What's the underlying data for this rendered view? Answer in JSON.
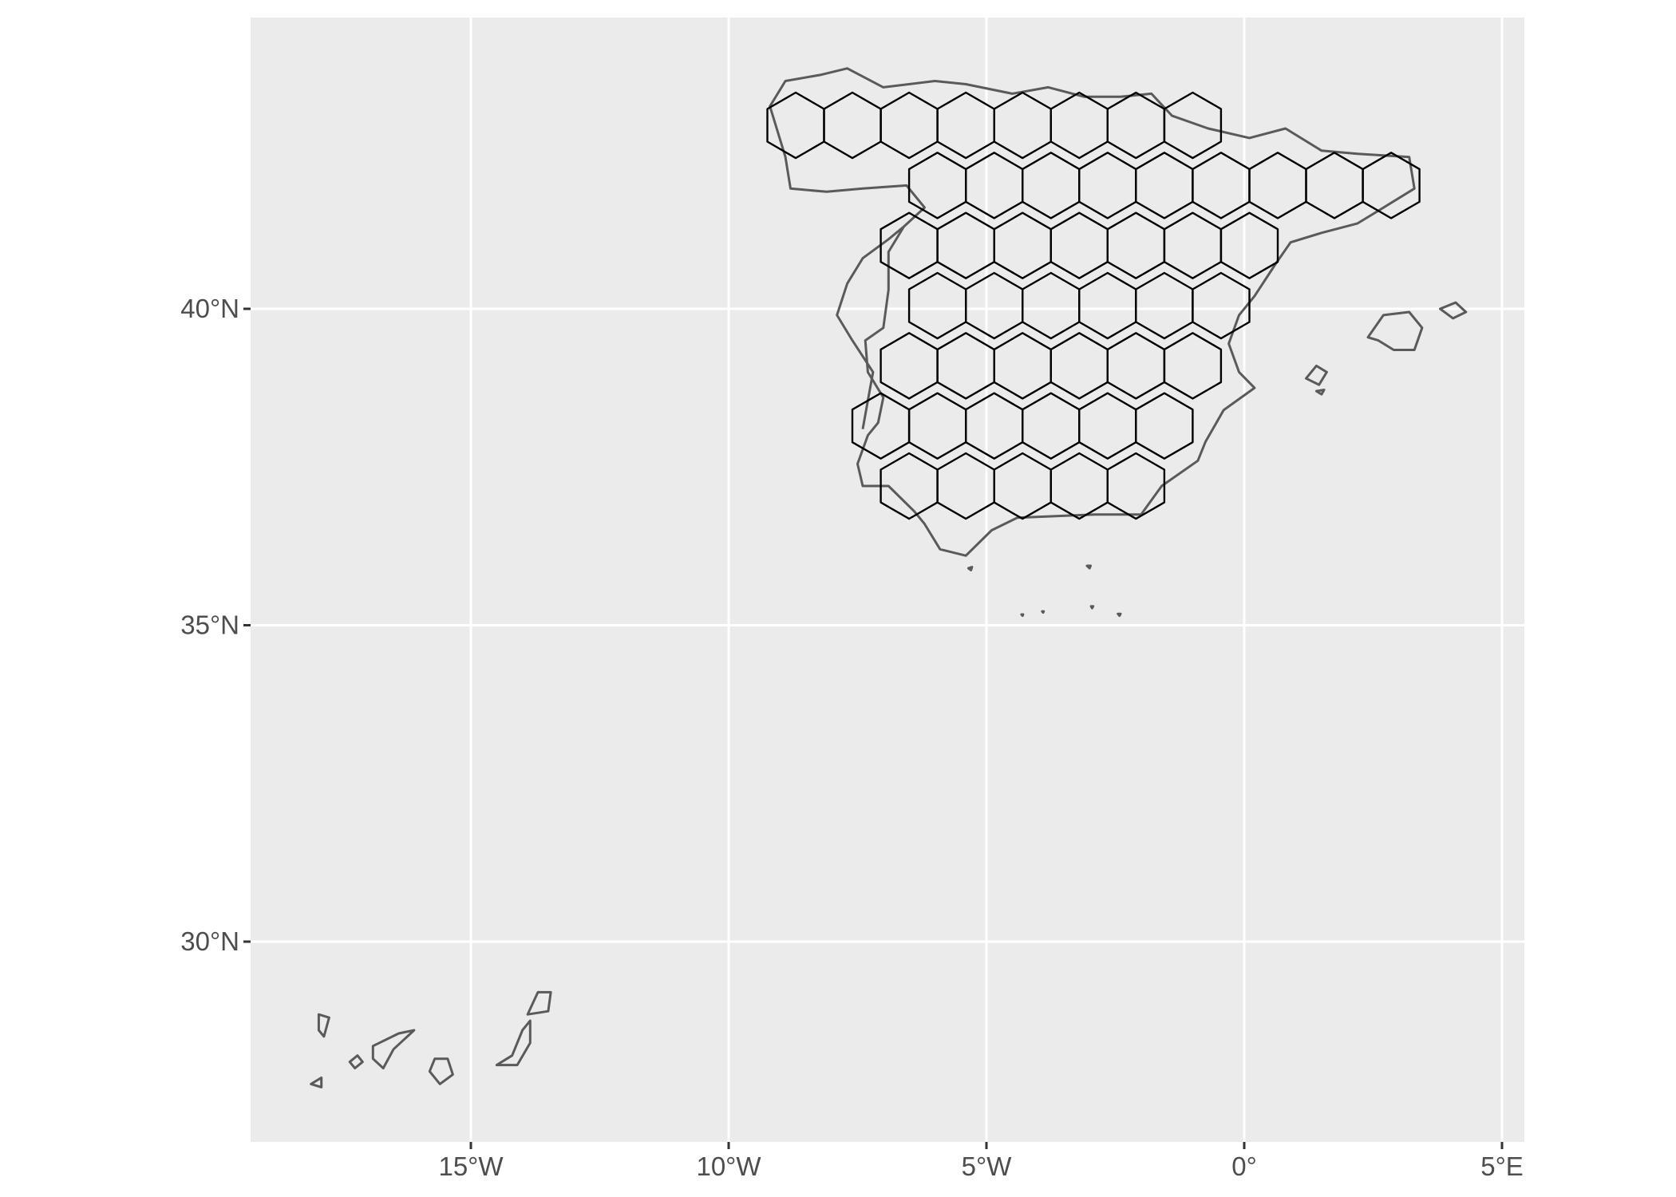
{
  "chart_data": {
    "type": "map",
    "title": "",
    "xlabel": "",
    "ylabel": "",
    "xlim": [
      -19.0,
      5.4
    ],
    "ylim": [
      26.7,
      44.5
    ],
    "grid": true,
    "colors": {
      "panel": "#EBEBEB",
      "gridline": "#FFFFFF",
      "coastline": "#5A5A5A",
      "hexagon": "#000000",
      "tick_label": "#4D4D4D"
    },
    "x_ticks": [
      {
        "value": -15,
        "label": "15°W"
      },
      {
        "value": -10,
        "label": "10°W"
      },
      {
        "value": -5,
        "label": "5°W"
      },
      {
        "value": 0,
        "label": "0°"
      },
      {
        "value": 5,
        "label": "5°E"
      }
    ],
    "y_ticks": [
      {
        "value": 30,
        "label": "30°N"
      },
      {
        "value": 35,
        "label": "35°N"
      },
      {
        "value": 40,
        "label": "40°N"
      }
    ],
    "hex_grid": {
      "cell_width_deg": 1.1,
      "hexagons": [
        {
          "x": -8.7,
          "y": 42.9
        },
        {
          "x": -7.6,
          "y": 42.9
        },
        {
          "x": -6.5,
          "y": 42.9
        },
        {
          "x": -5.4,
          "y": 42.9
        },
        {
          "x": -4.3,
          "y": 42.9
        },
        {
          "x": -3.2,
          "y": 42.9
        },
        {
          "x": -2.1,
          "y": 42.9
        },
        {
          "x": -1.0,
          "y": 42.9
        },
        {
          "x": -5.95,
          "y": 41.95
        },
        {
          "x": -4.85,
          "y": 41.95
        },
        {
          "x": -3.75,
          "y": 41.95
        },
        {
          "x": -2.65,
          "y": 41.95
        },
        {
          "x": -1.55,
          "y": 41.95
        },
        {
          "x": -0.45,
          "y": 41.95
        },
        {
          "x": 0.65,
          "y": 41.95
        },
        {
          "x": 1.75,
          "y": 41.95
        },
        {
          "x": 2.85,
          "y": 41.95
        },
        {
          "x": -6.5,
          "y": 41.0
        },
        {
          "x": -5.4,
          "y": 41.0
        },
        {
          "x": -4.3,
          "y": 41.0
        },
        {
          "x": -3.2,
          "y": 41.0
        },
        {
          "x": -2.1,
          "y": 41.0
        },
        {
          "x": -1.0,
          "y": 41.0
        },
        {
          "x": 0.1,
          "y": 41.0
        },
        {
          "x": -5.95,
          "y": 40.05
        },
        {
          "x": -4.85,
          "y": 40.05
        },
        {
          "x": -3.75,
          "y": 40.05
        },
        {
          "x": -2.65,
          "y": 40.05
        },
        {
          "x": -1.55,
          "y": 40.05
        },
        {
          "x": -0.45,
          "y": 40.05
        },
        {
          "x": -6.5,
          "y": 39.1
        },
        {
          "x": -5.4,
          "y": 39.1
        },
        {
          "x": -4.3,
          "y": 39.1
        },
        {
          "x": -3.2,
          "y": 39.1
        },
        {
          "x": -2.1,
          "y": 39.1
        },
        {
          "x": -1.0,
          "y": 39.1
        },
        {
          "x": -7.05,
          "y": 38.15
        },
        {
          "x": -5.95,
          "y": 38.15
        },
        {
          "x": -4.85,
          "y": 38.15
        },
        {
          "x": -3.75,
          "y": 38.15
        },
        {
          "x": -2.65,
          "y": 38.15
        },
        {
          "x": -1.55,
          "y": 38.15
        },
        {
          "x": -6.5,
          "y": 37.2
        },
        {
          "x": -5.4,
          "y": 37.2
        },
        {
          "x": -4.3,
          "y": 37.2
        },
        {
          "x": -3.2,
          "y": 37.2
        },
        {
          "x": -2.1,
          "y": 37.2
        }
      ]
    },
    "coastlines": [
      {
        "name": "Iberian mainland",
        "closed": true,
        "points": [
          [
            -9.2,
            43.2
          ],
          [
            -8.9,
            43.6
          ],
          [
            -8.2,
            43.7
          ],
          [
            -7.7,
            43.8
          ],
          [
            -7.0,
            43.5
          ],
          [
            -6.0,
            43.6
          ],
          [
            -5.4,
            43.55
          ],
          [
            -4.5,
            43.4
          ],
          [
            -3.8,
            43.5
          ],
          [
            -3.1,
            43.35
          ],
          [
            -2.4,
            43.35
          ],
          [
            -1.8,
            43.4
          ],
          [
            -1.4,
            43.05
          ],
          [
            -0.7,
            42.85
          ],
          [
            0.1,
            42.7
          ],
          [
            0.8,
            42.85
          ],
          [
            1.5,
            42.5
          ],
          [
            2.2,
            42.45
          ],
          [
            3.2,
            42.4
          ],
          [
            3.3,
            41.9
          ],
          [
            2.6,
            41.55
          ],
          [
            2.2,
            41.35
          ],
          [
            1.5,
            41.2
          ],
          [
            0.9,
            41.05
          ],
          [
            0.6,
            40.7
          ],
          [
            0.2,
            40.2
          ],
          [
            -0.1,
            39.9
          ],
          [
            -0.3,
            39.45
          ],
          [
            -0.1,
            39.0
          ],
          [
            0.2,
            38.75
          ],
          [
            -0.4,
            38.4
          ],
          [
            -0.75,
            37.9
          ],
          [
            -0.9,
            37.6
          ],
          [
            -1.6,
            37.2
          ],
          [
            -2.0,
            36.75
          ],
          [
            -2.9,
            36.75
          ],
          [
            -4.4,
            36.7
          ],
          [
            -4.9,
            36.5
          ],
          [
            -5.4,
            36.1
          ],
          [
            -5.9,
            36.2
          ],
          [
            -6.2,
            36.6
          ],
          [
            -6.4,
            36.8
          ],
          [
            -6.9,
            37.2
          ],
          [
            -7.4,
            37.2
          ],
          [
            -7.5,
            37.55
          ],
          [
            -7.3,
            38.0
          ],
          [
            -7.1,
            38.2
          ],
          [
            -7.0,
            38.6
          ],
          [
            -7.3,
            39.0
          ],
          [
            -7.35,
            39.5
          ],
          [
            -7.0,
            39.7
          ],
          [
            -6.9,
            40.3
          ],
          [
            -6.9,
            40.9
          ],
          [
            -6.6,
            41.3
          ],
          [
            -6.2,
            41.6
          ],
          [
            -6.55,
            41.95
          ],
          [
            -7.4,
            41.9
          ],
          [
            -8.1,
            41.85
          ],
          [
            -8.8,
            41.9
          ],
          [
            -8.9,
            42.4
          ],
          [
            -9.2,
            43.2
          ]
        ]
      },
      {
        "name": "Portugal west coast",
        "closed": false,
        "points": [
          [
            -6.6,
            41.3
          ],
          [
            -6.9,
            41.1
          ],
          [
            -7.4,
            40.8
          ],
          [
            -7.7,
            40.4
          ],
          [
            -7.9,
            39.9
          ],
          [
            -7.6,
            39.5
          ],
          [
            -7.2,
            39.0
          ],
          [
            -7.3,
            38.55
          ],
          [
            -7.4,
            38.1
          ]
        ]
      },
      {
        "name": "Mallorca",
        "closed": true,
        "points": [
          [
            2.4,
            39.55
          ],
          [
            2.7,
            39.9
          ],
          [
            3.2,
            39.95
          ],
          [
            3.45,
            39.7
          ],
          [
            3.3,
            39.35
          ],
          [
            2.9,
            39.35
          ],
          [
            2.6,
            39.5
          ],
          [
            2.4,
            39.55
          ]
        ]
      },
      {
        "name": "Menorca",
        "closed": true,
        "points": [
          [
            3.8,
            40.0
          ],
          [
            4.1,
            40.1
          ],
          [
            4.3,
            39.95
          ],
          [
            4.05,
            39.85
          ],
          [
            3.8,
            40.0
          ]
        ]
      },
      {
        "name": "Ibiza",
        "closed": true,
        "points": [
          [
            1.2,
            38.9
          ],
          [
            1.4,
            39.1
          ],
          [
            1.6,
            39.0
          ],
          [
            1.45,
            38.8
          ],
          [
            1.2,
            38.9
          ]
        ]
      },
      {
        "name": "Formentera",
        "closed": true,
        "points": [
          [
            1.4,
            38.7
          ],
          [
            1.55,
            38.72
          ],
          [
            1.5,
            38.65
          ],
          [
            1.4,
            38.7
          ]
        ]
      },
      {
        "name": "Lanzarote",
        "closed": true,
        "points": [
          [
            -13.9,
            28.85
          ],
          [
            -13.7,
            29.2
          ],
          [
            -13.45,
            29.2
          ],
          [
            -13.5,
            28.9
          ],
          [
            -13.9,
            28.85
          ]
        ]
      },
      {
        "name": "Fuerteventura",
        "closed": true,
        "points": [
          [
            -14.5,
            28.05
          ],
          [
            -14.2,
            28.2
          ],
          [
            -14.0,
            28.6
          ],
          [
            -13.85,
            28.75
          ],
          [
            -13.85,
            28.4
          ],
          [
            -14.1,
            28.05
          ],
          [
            -14.5,
            28.05
          ]
        ]
      },
      {
        "name": "Gran Canaria",
        "closed": true,
        "points": [
          [
            -15.8,
            27.95
          ],
          [
            -15.7,
            28.15
          ],
          [
            -15.45,
            28.15
          ],
          [
            -15.35,
            27.9
          ],
          [
            -15.6,
            27.75
          ],
          [
            -15.8,
            27.95
          ]
        ]
      },
      {
        "name": "Tenerife",
        "closed": true,
        "points": [
          [
            -16.9,
            28.35
          ],
          [
            -16.4,
            28.55
          ],
          [
            -16.1,
            28.6
          ],
          [
            -16.5,
            28.3
          ],
          [
            -16.7,
            28.0
          ],
          [
            -16.9,
            28.15
          ],
          [
            -16.9,
            28.35
          ]
        ]
      },
      {
        "name": "La Gomera",
        "closed": true,
        "points": [
          [
            -17.35,
            28.1
          ],
          [
            -17.2,
            28.2
          ],
          [
            -17.1,
            28.1
          ],
          [
            -17.25,
            28.0
          ],
          [
            -17.35,
            28.1
          ]
        ]
      },
      {
        "name": "La Palma",
        "closed": true,
        "points": [
          [
            -17.95,
            28.85
          ],
          [
            -17.75,
            28.8
          ],
          [
            -17.85,
            28.5
          ],
          [
            -17.95,
            28.6
          ],
          [
            -17.95,
            28.85
          ]
        ]
      },
      {
        "name": "El Hierro",
        "closed": true,
        "points": [
          [
            -18.1,
            27.75
          ],
          [
            -17.9,
            27.85
          ],
          [
            -17.9,
            27.7
          ],
          [
            -18.1,
            27.75
          ]
        ]
      },
      {
        "name": "Ceuta",
        "closed": true,
        "points": [
          [
            -5.35,
            35.9
          ],
          [
            -5.28,
            35.92
          ],
          [
            -5.3,
            35.87
          ],
          [
            -5.35,
            35.9
          ]
        ]
      },
      {
        "name": "Alboran islet",
        "closed": true,
        "points": [
          [
            -3.05,
            35.94
          ],
          [
            -2.98,
            35.94
          ],
          [
            -3.0,
            35.9
          ],
          [
            -3.05,
            35.94
          ]
        ]
      },
      {
        "name": "Melilla",
        "closed": true,
        "points": [
          [
            -2.97,
            35.3
          ],
          [
            -2.93,
            35.3
          ],
          [
            -2.95,
            35.27
          ],
          [
            -2.97,
            35.3
          ]
        ]
      },
      {
        "name": "Penon de Alhucemas",
        "closed": true,
        "points": [
          [
            -3.92,
            35.22
          ],
          [
            -3.89,
            35.22
          ],
          [
            -3.9,
            35.2
          ],
          [
            -3.92,
            35.22
          ]
        ]
      },
      {
        "name": "Penon de Velez",
        "closed": true,
        "points": [
          [
            -4.32,
            35.17
          ],
          [
            -4.29,
            35.17
          ],
          [
            -4.3,
            35.15
          ],
          [
            -4.32,
            35.17
          ]
        ]
      },
      {
        "name": "Chafarinas",
        "closed": true,
        "points": [
          [
            -2.45,
            35.18
          ],
          [
            -2.4,
            35.18
          ],
          [
            -2.42,
            35.15
          ],
          [
            -2.45,
            35.18
          ]
        ]
      }
    ]
  }
}
